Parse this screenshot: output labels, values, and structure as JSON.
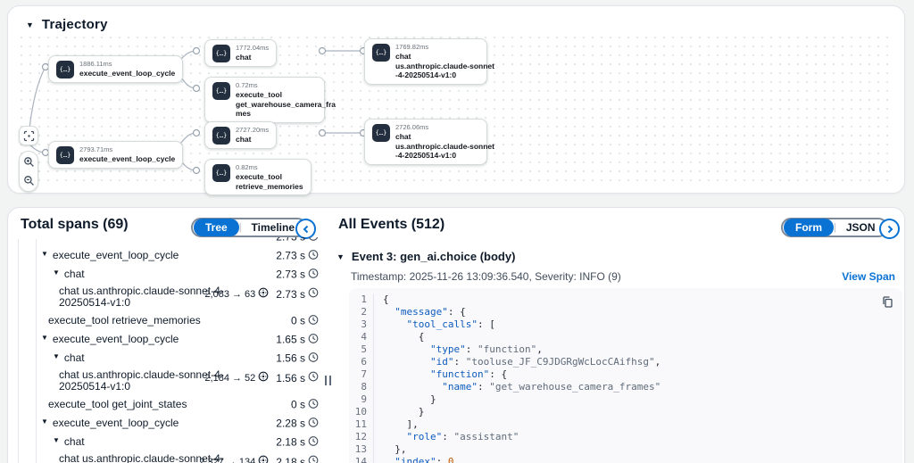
{
  "colors": {
    "accent": "#0972d3",
    "node_icon_bg": "#232f3e",
    "link": "#0972d3",
    "selected_pill": "#0972d3"
  },
  "trajectory": {
    "title": "Trajectory",
    "node_icon_glyph": "{…}",
    "nodes": [
      {
        "id": "n1",
        "duration": "1886.11ms",
        "label_lines": [
          "execute_event_loop_cycle"
        ]
      },
      {
        "id": "n2",
        "duration": "1772.04ms",
        "label_lines": [
          "chat"
        ]
      },
      {
        "id": "n3",
        "duration": "0.72ms",
        "label_lines": [
          "execute_tool",
          "get_warehouse_camera_fra",
          "mes"
        ]
      },
      {
        "id": "n4",
        "duration": "1769.82ms",
        "label_lines": [
          "chat",
          "us.anthropic.claude-sonnet",
          "-4-20250514-v1:0"
        ]
      },
      {
        "id": "n5",
        "duration": "2793.71ms",
        "label_lines": [
          "execute_event_loop_cycle"
        ]
      },
      {
        "id": "n6",
        "duration": "2727.20ms",
        "label_lines": [
          "chat"
        ]
      },
      {
        "id": "n7",
        "duration": "0.82ms",
        "label_lines": [
          "execute_tool",
          "retrieve_memories"
        ]
      },
      {
        "id": "n8",
        "duration": "2726.06ms",
        "label_lines": [
          "chat",
          "us.anthropic.claude-sonnet",
          "-4-20250514-v1:0"
        ]
      }
    ]
  },
  "spans_panel": {
    "title": "Total spans (69)",
    "toggle": {
      "options": [
        "Tree",
        "Timeline"
      ],
      "selected": "Tree"
    },
    "rows": [
      {
        "partial": true,
        "duration": "2.73 s"
      },
      {
        "level": 1,
        "caret": true,
        "label_lines": [
          "execute_event_loop_cycle"
        ],
        "duration": "2.73 s"
      },
      {
        "level": 2,
        "caret": true,
        "label_lines": [
          "chat"
        ],
        "duration": "2.73 s"
      },
      {
        "level": 3,
        "caret": false,
        "label_lines": [
          "chat us.anthropic.claude-sonnet-4-",
          "20250514-v1:0"
        ],
        "tokens": "2,083 → 63",
        "duration": "2.73 s"
      },
      {
        "level": 1,
        "caret": false,
        "label_lines": [
          "execute_tool retrieve_memories"
        ],
        "duration": "0 s"
      },
      {
        "level": 1,
        "caret": true,
        "label_lines": [
          "execute_event_loop_cycle"
        ],
        "duration": "1.65 s"
      },
      {
        "level": 2,
        "caret": true,
        "label_lines": [
          "chat"
        ],
        "duration": "1.56 s"
      },
      {
        "level": 3,
        "caret": false,
        "label_lines": [
          "chat us.anthropic.claude-sonnet-4-",
          "20250514-v1:0"
        ],
        "tokens": "2,184 → 52",
        "duration": "1.56 s"
      },
      {
        "level": 1,
        "caret": false,
        "label_lines": [
          "execute_tool get_joint_states"
        ],
        "duration": "0 s"
      },
      {
        "level": 1,
        "caret": true,
        "label_lines": [
          "execute_event_loop_cycle"
        ],
        "duration": "2.28 s"
      },
      {
        "level": 2,
        "caret": true,
        "label_lines": [
          "chat"
        ],
        "duration": "2.18 s"
      },
      {
        "level": 3,
        "caret": false,
        "label_lines": [
          "chat us.anthropic.claude-sonnet-4-",
          "20250514-v1:0"
        ],
        "tokens": "2,327 → 134",
        "duration": "2.18 s"
      }
    ]
  },
  "events_panel": {
    "title": "All Events (512)",
    "toggle": {
      "options": [
        "Form",
        "JSON"
      ],
      "selected": "Form"
    },
    "event_header": "Event 3: gen_ai.choice (body)",
    "meta": "Timestamp: 2025-11-26 13:09:36.540, Severity: INFO (9)",
    "view_span_label": "View Span",
    "code": {
      "lines": [
        {
          "n": 1,
          "toks": [
            [
              "p",
              "{"
            ]
          ]
        },
        {
          "n": 2,
          "toks": [
            [
              "p",
              "  "
            ],
            [
              "k",
              "\"message\""
            ],
            [
              "p",
              ": {"
            ]
          ]
        },
        {
          "n": 3,
          "toks": [
            [
              "p",
              "    "
            ],
            [
              "k",
              "\"tool_calls\""
            ],
            [
              "p",
              ": ["
            ]
          ]
        },
        {
          "n": 4,
          "toks": [
            [
              "p",
              "      {"
            ]
          ]
        },
        {
          "n": 5,
          "toks": [
            [
              "p",
              "        "
            ],
            [
              "k",
              "\"type\""
            ],
            [
              "p",
              ": "
            ],
            [
              "s",
              "\"function\""
            ],
            [
              "p",
              ","
            ]
          ]
        },
        {
          "n": 6,
          "toks": [
            [
              "p",
              "        "
            ],
            [
              "k",
              "\"id\""
            ],
            [
              "p",
              ": "
            ],
            [
              "s",
              "\"tooluse_JF_C9JDGRgWcLocCAifhsg\""
            ],
            [
              "p",
              ","
            ]
          ]
        },
        {
          "n": 7,
          "toks": [
            [
              "p",
              "        "
            ],
            [
              "k",
              "\"function\""
            ],
            [
              "p",
              ": {"
            ]
          ]
        },
        {
          "n": 8,
          "toks": [
            [
              "p",
              "          "
            ],
            [
              "k",
              "\"name\""
            ],
            [
              "p",
              ": "
            ],
            [
              "s",
              "\"get_warehouse_camera_frames\""
            ]
          ]
        },
        {
          "n": 9,
          "toks": [
            [
              "p",
              "        }"
            ]
          ]
        },
        {
          "n": 10,
          "toks": [
            [
              "p",
              "      }"
            ]
          ]
        },
        {
          "n": 11,
          "toks": [
            [
              "p",
              "    ],"
            ]
          ]
        },
        {
          "n": 12,
          "toks": [
            [
              "p",
              "    "
            ],
            [
              "k",
              "\"role\""
            ],
            [
              "p",
              ": "
            ],
            [
              "s",
              "\"assistant\""
            ]
          ]
        },
        {
          "n": 13,
          "toks": [
            [
              "p",
              "  },"
            ]
          ]
        },
        {
          "n": 14,
          "toks": [
            [
              "p",
              "  "
            ],
            [
              "k",
              "\"index\""
            ],
            [
              "p",
              ": "
            ],
            [
              "n",
              "0"
            ]
          ]
        }
      ]
    }
  }
}
